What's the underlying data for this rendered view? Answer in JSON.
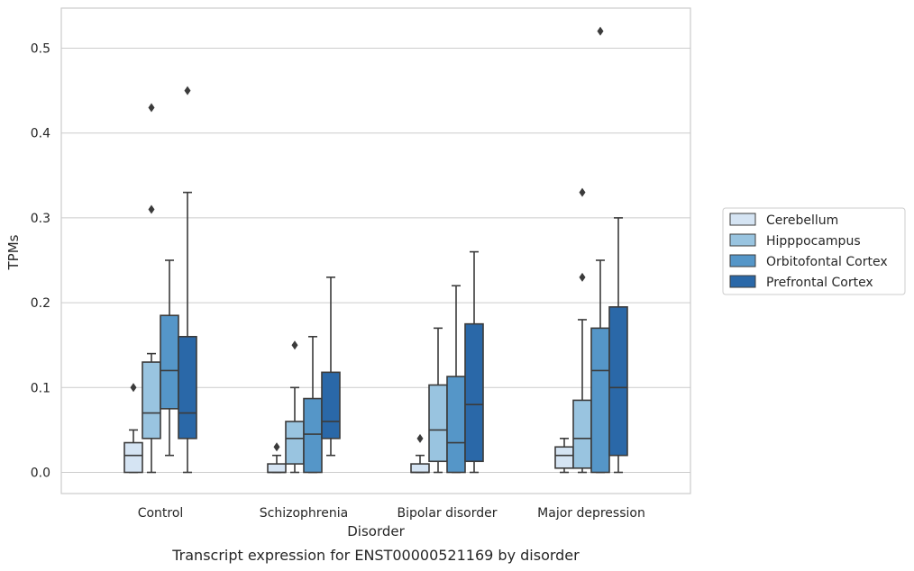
{
  "chart_data": {
    "type": "box",
    "title": "",
    "caption": "Transcript expression for ENST00000521169 by disorder",
    "xlabel": "Disorder",
    "ylabel": "TPMs",
    "ylim": [
      -0.025,
      0.545
    ],
    "yticks": [
      0.0,
      0.1,
      0.2,
      0.3,
      0.4,
      0.5
    ],
    "ytick_labels": [
      "0.0",
      "0.1",
      "0.2",
      "0.3",
      "0.4",
      "0.5"
    ],
    "grid": "horizontal",
    "legend_position": "right",
    "categories": [
      "Control",
      "Schizophrenia",
      "Bipolar disorder",
      "Major depression"
    ],
    "series": [
      {
        "name": "Cerebellum",
        "color": "#d5e4f3",
        "boxes": [
          {
            "whisker_low": 0.0,
            "q1": 0.0,
            "median": 0.02,
            "q3": 0.035,
            "whisker_high": 0.05,
            "outliers": [
              0.1
            ]
          },
          {
            "whisker_low": 0.0,
            "q1": 0.0,
            "median": 0.0,
            "q3": 0.01,
            "whisker_high": 0.02,
            "outliers": [
              0.03
            ]
          },
          {
            "whisker_low": 0.0,
            "q1": 0.0,
            "median": 0.0,
            "q3": 0.01,
            "whisker_high": 0.02,
            "outliers": [
              0.04
            ]
          },
          {
            "whisker_low": 0.0,
            "q1": 0.005,
            "median": 0.02,
            "q3": 0.03,
            "whisker_high": 0.04,
            "outliers": []
          }
        ]
      },
      {
        "name": "Hipppocampus",
        "color": "#99c4e0",
        "boxes": [
          {
            "whisker_low": 0.0,
            "q1": 0.04,
            "median": 0.07,
            "q3": 0.13,
            "whisker_high": 0.14,
            "outliers": [
              0.31,
              0.43
            ]
          },
          {
            "whisker_low": 0.0,
            "q1": 0.01,
            "median": 0.04,
            "q3": 0.06,
            "whisker_high": 0.1,
            "outliers": [
              0.15
            ]
          },
          {
            "whisker_low": 0.0,
            "q1": 0.013,
            "median": 0.05,
            "q3": 0.103,
            "whisker_high": 0.17,
            "outliers": []
          },
          {
            "whisker_low": 0.0,
            "q1": 0.005,
            "median": 0.04,
            "q3": 0.085,
            "whisker_high": 0.18,
            "outliers": [
              0.23,
              0.33
            ]
          }
        ]
      },
      {
        "name": "Orbitofontal Cortex",
        "color": "#5596c8",
        "boxes": [
          {
            "whisker_low": 0.02,
            "q1": 0.075,
            "median": 0.12,
            "q3": 0.185,
            "whisker_high": 0.25,
            "outliers": []
          },
          {
            "whisker_low": 0.0,
            "q1": 0.0,
            "median": 0.045,
            "q3": 0.087,
            "whisker_high": 0.16,
            "outliers": []
          },
          {
            "whisker_low": 0.0,
            "q1": 0.0,
            "median": 0.035,
            "q3": 0.113,
            "whisker_high": 0.22,
            "outliers": []
          },
          {
            "whisker_low": 0.0,
            "q1": 0.0,
            "median": 0.12,
            "q3": 0.17,
            "whisker_high": 0.25,
            "outliers": [
              0.52
            ]
          }
        ]
      },
      {
        "name": "Prefrontal Cortex",
        "color": "#2a68a8",
        "boxes": [
          {
            "whisker_low": 0.0,
            "q1": 0.04,
            "median": 0.07,
            "q3": 0.16,
            "whisker_high": 0.33,
            "outliers": [
              0.45
            ]
          },
          {
            "whisker_low": 0.02,
            "q1": 0.04,
            "median": 0.06,
            "q3": 0.118,
            "whisker_high": 0.23,
            "outliers": []
          },
          {
            "whisker_low": 0.0,
            "q1": 0.013,
            "median": 0.08,
            "q3": 0.175,
            "whisker_high": 0.26,
            "outliers": []
          },
          {
            "whisker_low": 0.0,
            "q1": 0.02,
            "median": 0.1,
            "q3": 0.195,
            "whisker_high": 0.3,
            "outliers": []
          }
        ]
      }
    ],
    "colors": {
      "grid": "#cccccc",
      "frame": "#cccccc",
      "box_edge": "#3b3b3b"
    }
  }
}
